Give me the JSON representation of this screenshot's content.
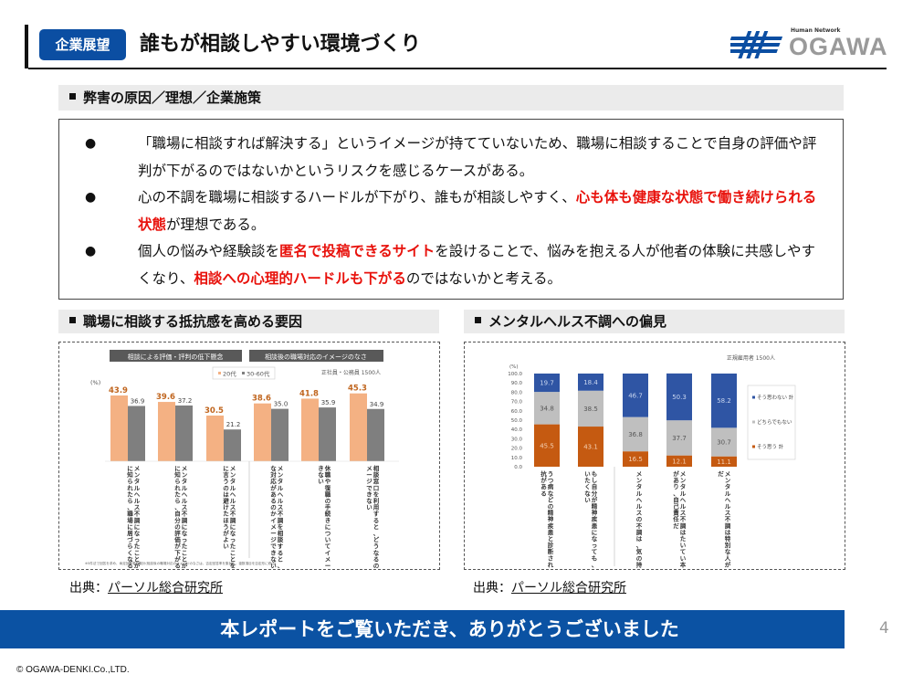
{
  "header": {
    "tag": "企業展望",
    "title": "誰もが相談しやすい環境づくり",
    "logo_tagline": "Human Network",
    "logo_word": "OGAWA"
  },
  "section1": {
    "title": "弊害の原因／理想／企業施策",
    "bullets": [
      {
        "segments": [
          {
            "text": "「職場に相談すれば解決する」というイメージが持てていないため、職場に相談することで自身の評価や評判が下がるのではないかというリスクを感じるケースがある。",
            "emphasis": false
          }
        ]
      },
      {
        "segments": [
          {
            "text": "心の不調を職場に相談するハードルが下がり、誰もが相談しやすく、",
            "emphasis": false
          },
          {
            "text": "心も体も健康な状態で働き続けられる状態",
            "emphasis": true
          },
          {
            "text": "が理想である。",
            "emphasis": false
          }
        ]
      },
      {
        "segments": [
          {
            "text": "個人の悩みや経験談を",
            "emphasis": false
          },
          {
            "text": "匿名で投稿できるサイト",
            "emphasis": true
          },
          {
            "text": "を設けることで、悩みを抱える人が他者の体験に共感しやすくなり、",
            "emphasis": false
          },
          {
            "text": "相談への心理的ハードルも下がる",
            "emphasis": true
          },
          {
            "text": "のではないかと考える。",
            "emphasis": false
          }
        ]
      }
    ],
    "bullet_char": "●"
  },
  "section2": {
    "title": "職場に相談する抵抗感を高める要因",
    "source_prefix": "出典：",
    "source_link": "パーソル総合研究所"
  },
  "section3": {
    "title": "メンタルヘルス不調への偏見",
    "source_prefix": "出典：",
    "source_link": "パーソル総合研究所"
  },
  "footer": {
    "thanks": "本レポートをご覧いただき、ありがとうございました",
    "page_number": "4",
    "copyright": "© OGAWA-DENKI.Co.,LTD."
  },
  "colors": {
    "brand_blue": "#0b52a3",
    "emphasis_red": "#e8120c",
    "bar_20s": "#f4b183",
    "bar_30_60s": "#7f7f7f",
    "label_20s": "#c0651e",
    "stack_agree": "#c55a11",
    "stack_neutral": "#bfbfbf",
    "stack_disagree": "#2f55a4"
  },
  "chart_data": [
    {
      "type": "bar",
      "title": "",
      "group_headers": [
        "相談による評価・評判の低下懸念",
        "相談後の職場対応のイメージのなさ"
      ],
      "sample_note": "正社員・公務員 1500人",
      "ylabel": "(%)",
      "ylim": [
        0,
        50
      ],
      "legend": "top-center",
      "categories": [
        "メンタルヘルス不調になったことが職場に知られたら、職場に居づらくなる",
        "メンタルヘルス不調になったことが職場に知られたら、自分の評価が下がる",
        "メンタルヘルス不調になったことを職場に言うのは避けたほうがよい",
        "メンタルヘルス不調を相談すると、どんな対応があるのかイメージできない",
        "休職や復職の手続きについてイメージできない",
        "相談窓口を利用すると、どうなるのかイメージできない"
      ],
      "series": [
        {
          "name": "20代",
          "values": [
            43.9,
            39.6,
            30.5,
            38.6,
            41.8,
            45.3
          ]
        },
        {
          "name": "30-60代",
          "values": [
            36.9,
            37.2,
            21.2,
            35.0,
            35.9,
            34.9
          ]
        }
      ],
      "footnote": "※5件法で回答を求め、肯定回答率を集計(相談後の職場対応のイメージのなさは、否定回答率を集計し、複数項目を否定形に修正)"
    },
    {
      "type": "bar",
      "stacked": true,
      "title": "",
      "sample_note": "正規雇用者 1500人",
      "ylabel": "(%)",
      "ylim": [
        0,
        100
      ],
      "y_ticks": [
        "0.0",
        "10.0",
        "20.0",
        "30.0",
        "40.0",
        "50.0",
        "60.0",
        "70.0",
        "80.0",
        "90.0",
        "100.0"
      ],
      "legend": "right",
      "categories": [
        "うつ病などの精神疾患と診断されるのに抵抗がある",
        "もし自分が精神疾患になっても、人には言いたくない",
        "メンタルヘルスの不調は、気の持ちようだ",
        "メンタルヘルス不調はたいてい本人に原因があり、自己責任だ",
        "メンタルヘルス不調は特別な人がなる病気だ"
      ],
      "series": [
        {
          "name": "そう思う 計",
          "values": [
            45.5,
            43.1,
            16.5,
            12.1,
            11.1
          ]
        },
        {
          "name": "どちらでもない",
          "values": [
            34.8,
            38.5,
            36.8,
            37.7,
            30.7
          ]
        },
        {
          "name": "そう思わない 計",
          "values": [
            19.7,
            18.4,
            46.7,
            50.3,
            58.2
          ]
        }
      ],
      "legend_order": [
        "そう思わない 計",
        "どちらでもない",
        "そう思う 計"
      ]
    }
  ]
}
